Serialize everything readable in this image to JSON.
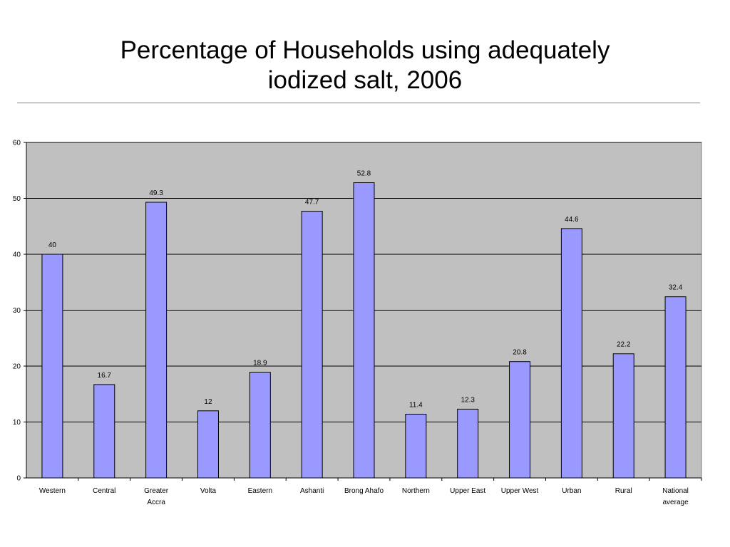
{
  "slide": {
    "title_line1": "Percentage of Households using adequately",
    "title_line2": "iodized salt, 2006"
  },
  "colors": {
    "bar_fill": "#9999ff",
    "bar_stroke": "#000000",
    "plot_background": "#c0c0c0",
    "gridline": "#000000"
  },
  "chart_data": {
    "type": "bar",
    "title": "Percentage of Households using adequately iodized salt, 2006",
    "xlabel": "",
    "ylabel": "",
    "categories": [
      [
        "Western"
      ],
      [
        "Central"
      ],
      [
        "Greater",
        "Accra"
      ],
      [
        "Volta"
      ],
      [
        "Eastern"
      ],
      [
        "Ashanti"
      ],
      [
        "Brong Ahafo"
      ],
      [
        "Northern"
      ],
      [
        "Upper East"
      ],
      [
        "Upper West"
      ],
      [
        "Urban"
      ],
      [
        "Rural"
      ],
      [
        "National",
        "average"
      ]
    ],
    "values": [
      40,
      16.7,
      49.3,
      12,
      18.9,
      47.7,
      52.8,
      11.4,
      12.3,
      20.8,
      44.6,
      22.2,
      32.4
    ],
    "data_labels": [
      "40",
      "16.7",
      "49.3",
      "12",
      "18.9",
      "47.7",
      "52.8",
      "11.4",
      "12.3",
      "20.8",
      "44.6",
      "22.2",
      "32.4"
    ],
    "ylim": [
      0,
      60
    ],
    "yticks": [
      0,
      10,
      20,
      30,
      40,
      50,
      60
    ],
    "grid": true,
    "legend": "none"
  }
}
